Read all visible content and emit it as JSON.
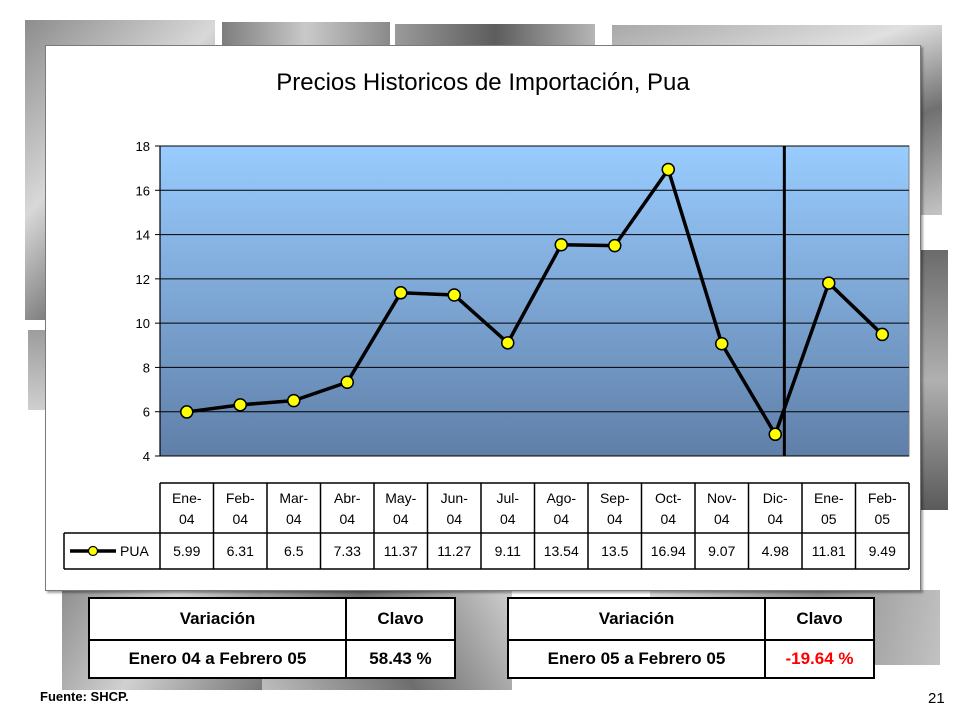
{
  "chart_data": {
    "type": "line",
    "title": "Precios Historicos de Importación, Pua",
    "categories": [
      "Ene-04",
      "Feb-04",
      "Mar-04",
      "Abr-04",
      "May-04",
      "Jun-04",
      "Jul-04",
      "Ago-04",
      "Sep-04",
      "Oct-04",
      "Nov-04",
      "Dic-04",
      "Ene-05",
      "Feb-05"
    ],
    "category_top": [
      "Ene-",
      "Feb-",
      "Mar-",
      "Abr-",
      "May-",
      "Jun-",
      "Jul-",
      "Ago-",
      "Sep-",
      "Oct-",
      "Nov-",
      "Dic-",
      "Ene-",
      "Feb-"
    ],
    "category_bottom": [
      "04",
      "04",
      "04",
      "04",
      "04",
      "04",
      "04",
      "04",
      "04",
      "04",
      "04",
      "04",
      "05",
      "05"
    ],
    "series": [
      {
        "name": "PUA",
        "values": [
          5.99,
          6.31,
          6.5,
          7.33,
          11.37,
          11.27,
          9.11,
          13.54,
          13.5,
          16.94,
          9.07,
          4.98,
          11.81,
          9.49
        ],
        "labels": [
          "5.99",
          "6.31",
          "6.5",
          "7.33",
          "11.37",
          "11.27",
          "9.11",
          "13.54",
          "13.5",
          "16.94",
          "9.07",
          "4.98",
          "11.81",
          "9.49"
        ]
      }
    ],
    "ylim": [
      4,
      18
    ],
    "yticks": [
      "4",
      "6",
      "8",
      "10",
      "12",
      "14",
      "16",
      "18"
    ],
    "grid": true,
    "legend": "data table below chart",
    "divider_after_category": "Dic-04",
    "colors": {
      "line": "#000000",
      "marker": "#ffff00",
      "plot_top": "#99ccff",
      "plot_bottom": "#5f7fa8"
    }
  },
  "table_left": {
    "header_left": "Variación",
    "header_right": "Clavo",
    "row_left": "Enero 04 a Febrero 05",
    "row_right": "58.43 %"
  },
  "table_right": {
    "header_left": "Variación",
    "header_right": "Clavo",
    "row_left": "Enero 05 a Febrero 05",
    "row_right": "-19.64 %",
    "value_color": "#ff0000"
  },
  "footer": {
    "source": "Fuente: SHCP.",
    "page_number": "21"
  }
}
